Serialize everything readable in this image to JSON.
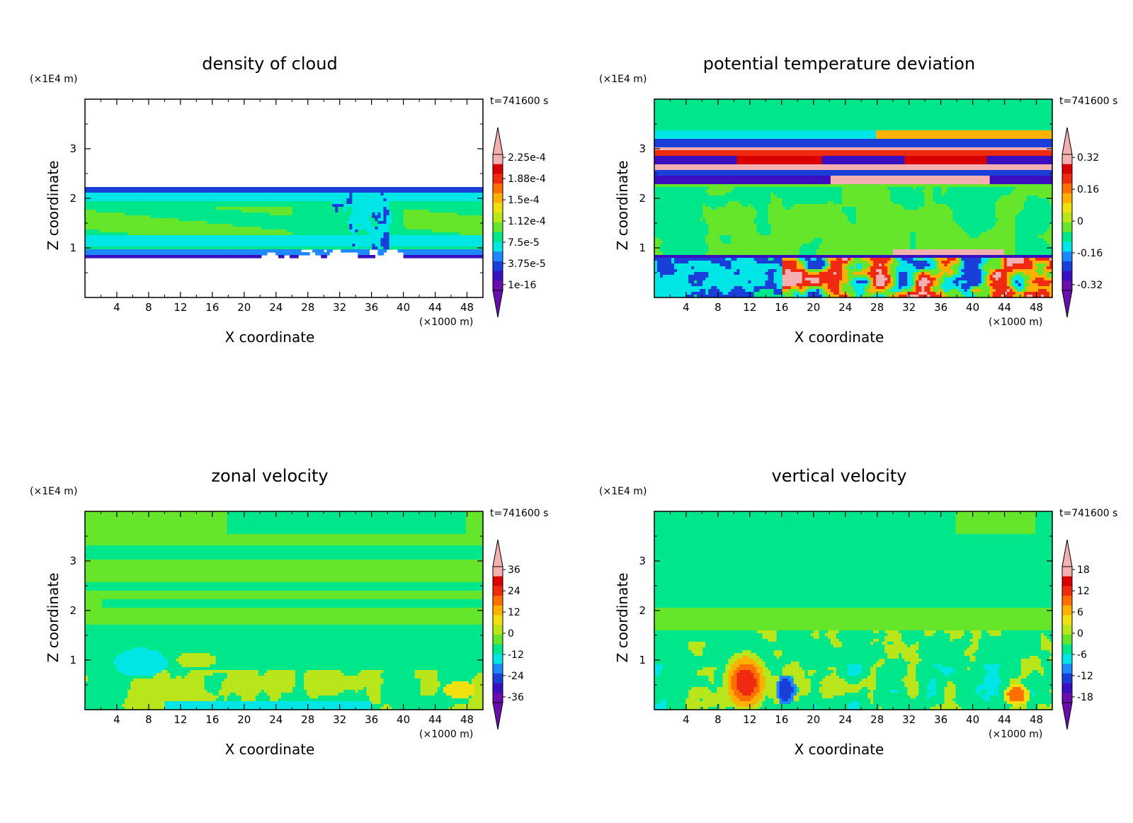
{
  "chart_data": [
    {
      "type": "heatmap",
      "title": "density of cloud",
      "xlabel": "X coordinate",
      "ylabel": "Z coordinate",
      "x_unit": "(×1000 m)",
      "y_unit": "(×1E4 m)",
      "time_label": "t=741600 s",
      "xlim": [
        0,
        50
      ],
      "ylim": [
        0,
        4
      ],
      "x_ticks": [
        4,
        8,
        12,
        16,
        20,
        24,
        28,
        32,
        36,
        40,
        44,
        48
      ],
      "y_ticks": [
        1,
        2,
        3
      ],
      "colorbar": [
        "1e-16",
        "3.75e-5",
        "7.5e-5",
        "1.12e-4",
        "1.5e-4",
        "1.88e-4",
        "2.25e-4"
      ],
      "field": "cloud",
      "grid": false
    },
    {
      "type": "heatmap",
      "title": "potential temperature deviation",
      "xlabel": "X coordinate",
      "ylabel": "Z coordinate",
      "x_unit": "(×1000 m)",
      "y_unit": "(×1E4 m)",
      "time_label": "t=741600 s",
      "xlim": [
        0,
        50
      ],
      "ylim": [
        0,
        4
      ],
      "x_ticks": [
        4,
        8,
        12,
        16,
        20,
        24,
        28,
        32,
        36,
        40,
        44,
        48
      ],
      "y_ticks": [
        1,
        2,
        3
      ],
      "colorbar": [
        "-0.32",
        "-0.16",
        "0",
        "0.16",
        "0.32"
      ],
      "field": "theta",
      "grid": false
    },
    {
      "type": "heatmap",
      "title": "zonal velocity",
      "xlabel": "X coordinate",
      "ylabel": "Z coordinate",
      "x_unit": "(×1000 m)",
      "y_unit": "(×1E4 m)",
      "time_label": "t=741600 s",
      "xlim": [
        0,
        50
      ],
      "ylim": [
        0,
        4
      ],
      "x_ticks": [
        4,
        8,
        12,
        16,
        20,
        24,
        28,
        32,
        36,
        40,
        44,
        48
      ],
      "y_ticks": [
        1,
        2,
        3
      ],
      "colorbar": [
        "-36",
        "-24",
        "-12",
        "0",
        "12",
        "24",
        "36"
      ],
      "field": "u",
      "grid": false
    },
    {
      "type": "heatmap",
      "title": "vertical velocity",
      "xlabel": "X coordinate",
      "ylabel": "Z coordinate",
      "x_unit": "(×1000 m)",
      "y_unit": "(×1E4 m)",
      "time_label": "t=741600 s",
      "xlim": [
        0,
        50
      ],
      "ylim": [
        0,
        4
      ],
      "x_ticks": [
        4,
        8,
        12,
        16,
        20,
        24,
        28,
        32,
        36,
        40,
        44,
        48
      ],
      "y_ticks": [
        1,
        2,
        3
      ],
      "colorbar": [
        "-18",
        "-12",
        "-6",
        "0",
        "6",
        "12",
        "18"
      ],
      "field": "w",
      "grid": false
    }
  ],
  "colors": {
    "palette": [
      "#6a0dad",
      "#3a0fc0",
      "#1a3fd8",
      "#1e88ff",
      "#00e5e5",
      "#00e68a",
      "#66e62a",
      "#b8e61a",
      "#f0e010",
      "#ffb000",
      "#ff7000",
      "#f02a10",
      "#d80000",
      "#f4b0b0"
    ]
  }
}
